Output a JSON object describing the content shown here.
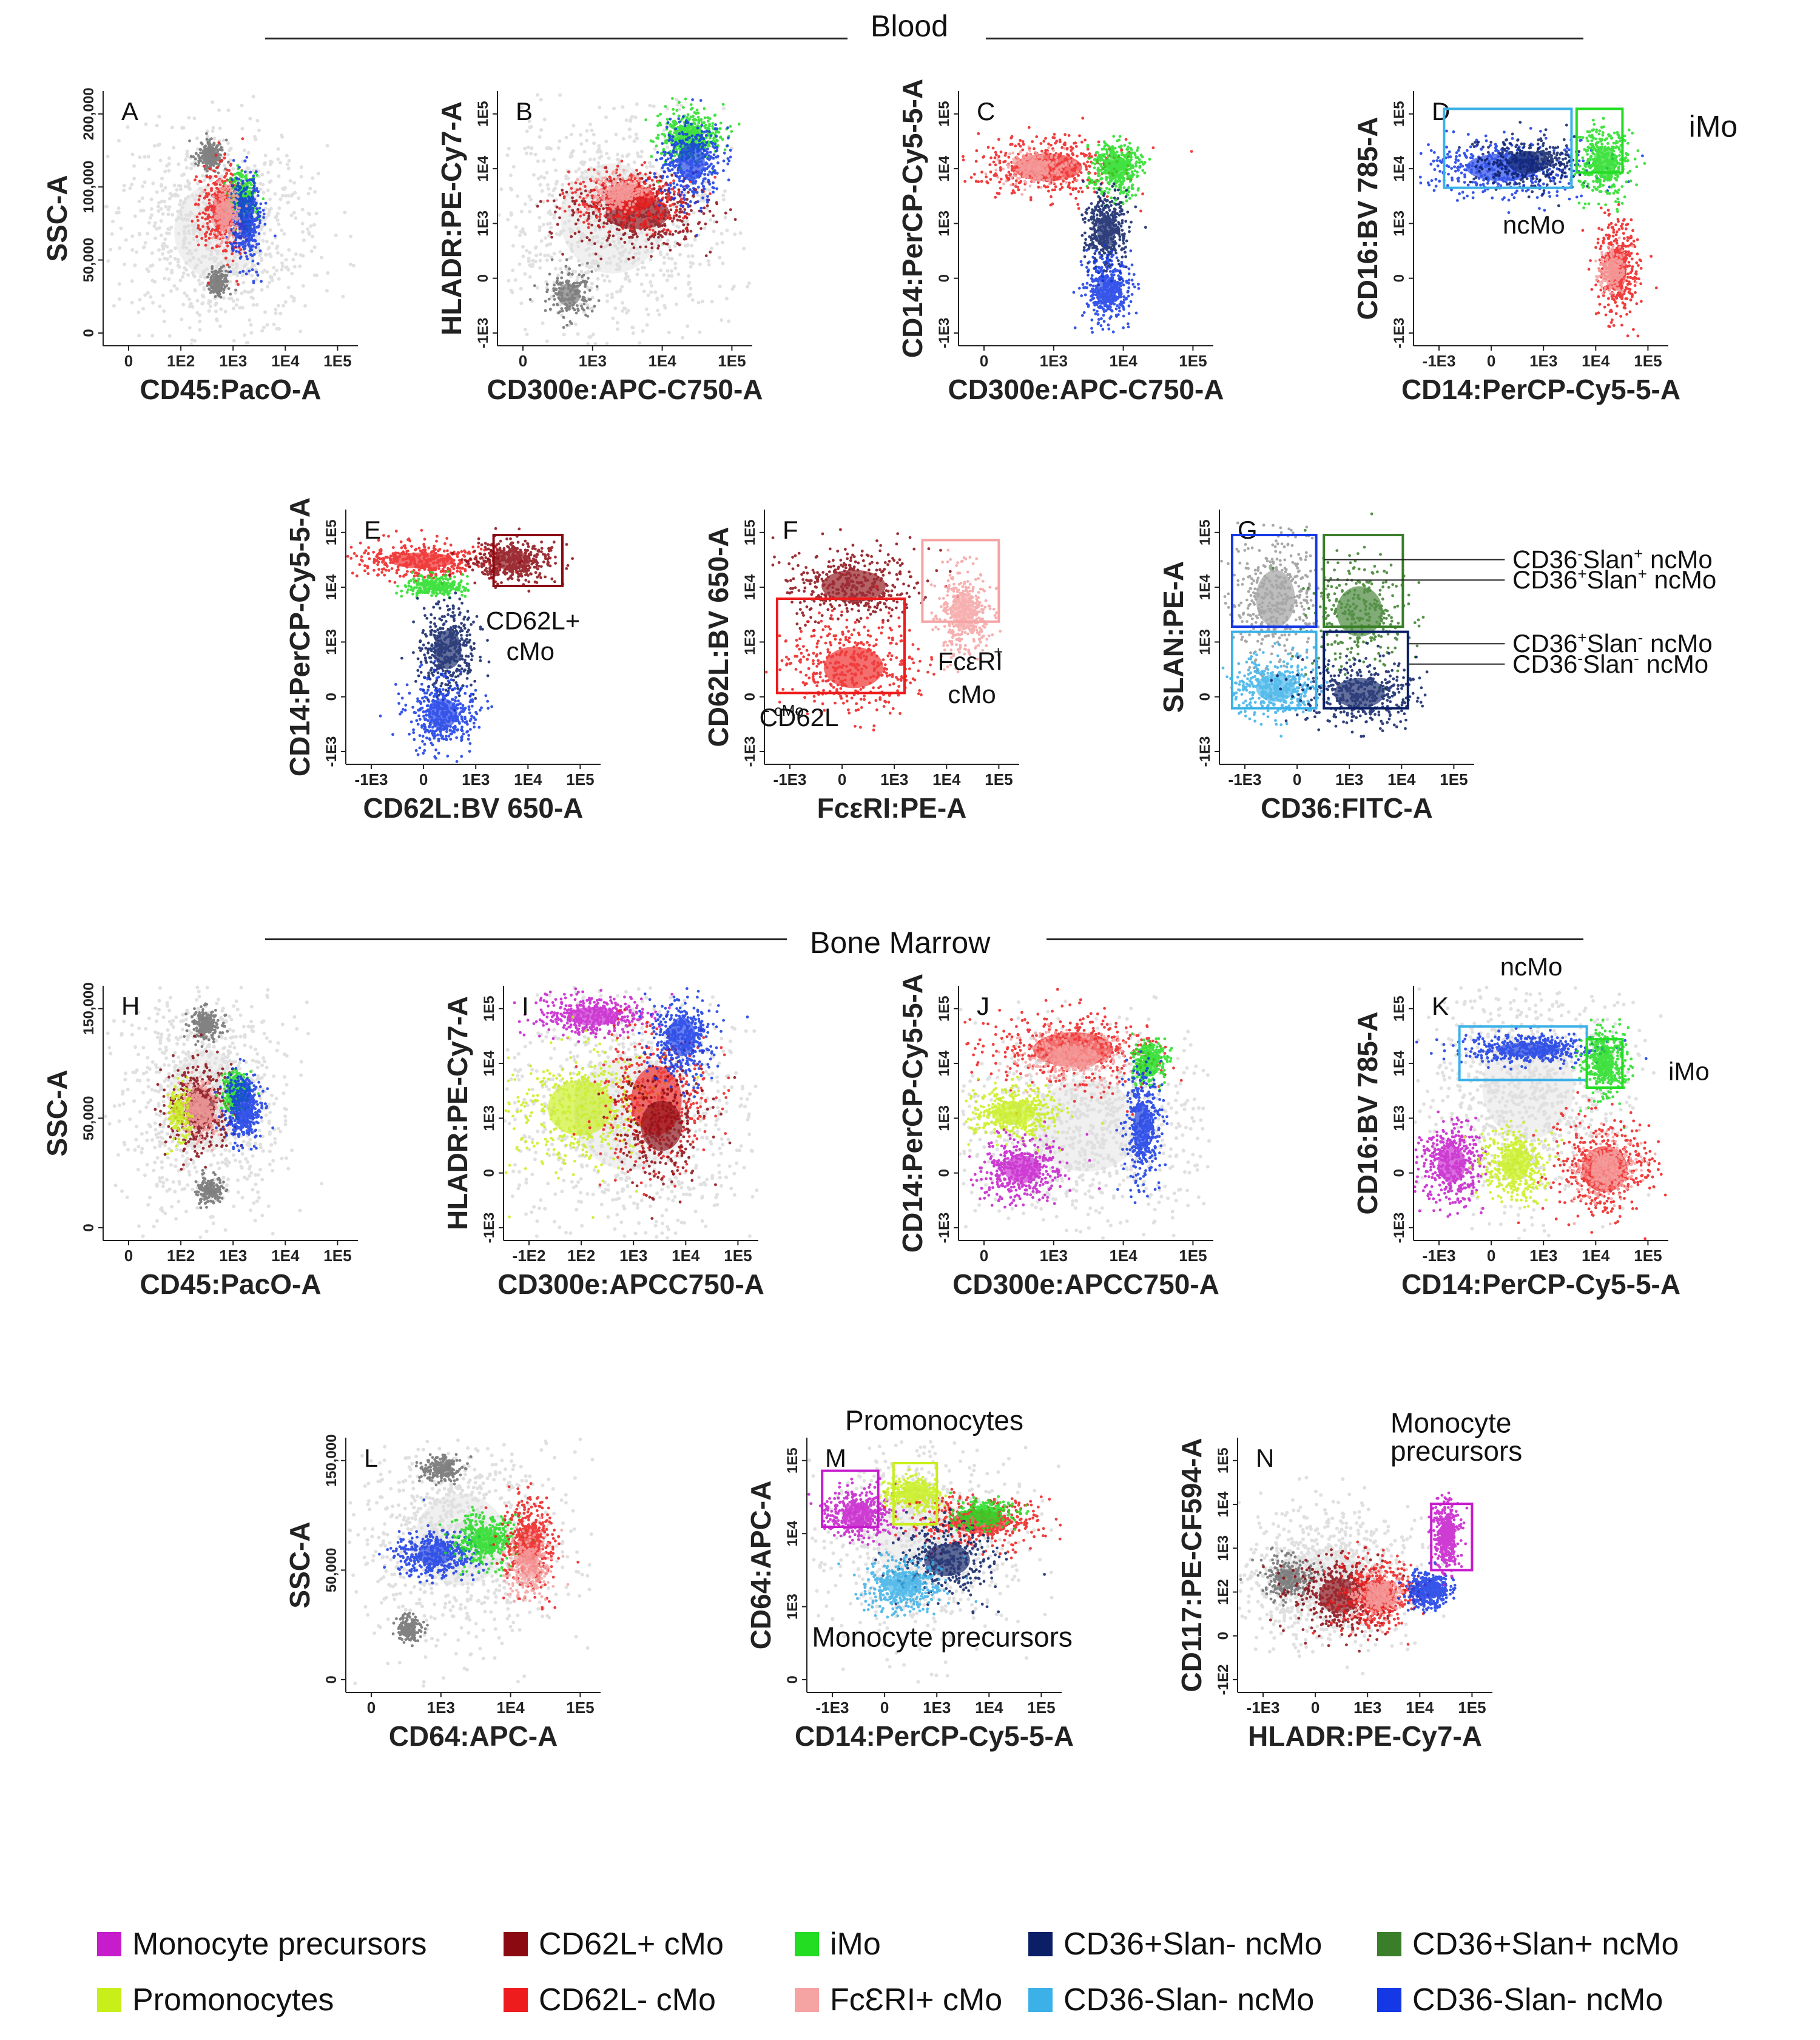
{
  "sections": {
    "blood_title": "Blood",
    "marrow_title": "Bone Marrow"
  },
  "colors": {
    "Monocyte precursors": "#c61ccc",
    "Promonocytes": "#c8ef1a",
    "CD62L+ cMo": "#8b0a12",
    "CD62L- cMo": "#ee1c1c",
    "iMo": "#22dd22",
    "FcERI+ cMo": "#f5a3a3",
    "CD36+Slan- ncMo": "#0b1f66",
    "CD36+Slan+ ncMo": "#3a7e2a",
    "CD36-Slan- ncMo (light)": "#3bb1e8",
    "CD36-Slan- ncMo": "#1438e6",
    "background": "#c8c8c8",
    "background_dark": "#6e6e6e"
  },
  "legend": [
    {
      "label": "Monocyte precursors",
      "color": "#c61ccc"
    },
    {
      "label": "CD62L+ cMo",
      "color": "#8b0a12"
    },
    {
      "label": "iMo",
      "color": "#22dd22"
    },
    {
      "label": "CD36+Slan- ncMo",
      "color": "#0b1f66"
    },
    {
      "label": "CD36+Slan+ ncMo",
      "color": "#3a7e2a"
    },
    {
      "label": "Promonocytes",
      "color": "#c8ef1a"
    },
    {
      "label": "CD62L- cMo",
      "color": "#ee1c1c"
    },
    {
      "label": "FcƐRI+ cMo",
      "color": "#f5a3a3"
    },
    {
      "label": "CD36-Slan- ncMo",
      "color": "#3bb1e8"
    },
    {
      "label": "CD36-Slan- ncMo",
      "color": "#1438e6"
    }
  ],
  "chart_data": [
    {
      "type": "scatter",
      "panel": "A",
      "xlabel": "CD45:PacO-A",
      "ylabel": "SSC-A",
      "xticks": [
        "0",
        "1E2",
        "1E3",
        "1E4",
        "1E5"
      ],
      "yticks": [
        "0",
        "50,000",
        "100,000",
        "200,000"
      ],
      "gates": [],
      "annotations": [],
      "populations": [
        {
          "name": "background",
          "color": "#c8c8c8",
          "approx": "broad cloud of leukocytes"
        },
        {
          "name": "CD62L- cMo",
          "color": "#ee1c1c",
          "approx": "CD45 ~1E3, SSC 40,000-90,000"
        },
        {
          "name": "iMo",
          "color": "#22dd22",
          "approx": "CD45 ~3E3, SSC ~70,000"
        },
        {
          "name": "CD36-Slan- ncMo",
          "color": "#1438e6",
          "approx": "CD45 ~4E3, SSC 30,000-70,000"
        }
      ]
    },
    {
      "type": "scatter",
      "panel": "B",
      "xlabel": "CD300e:APC-C750-A",
      "ylabel": "HLADR:PE-Cy7-A",
      "xticks": [
        "0",
        "1E3",
        "1E4",
        "1E5"
      ],
      "yticks": [
        "-1E3",
        "0",
        "1E3",
        "1E4",
        "1E5"
      ],
      "gates": [],
      "annotations": [],
      "populations": [
        {
          "name": "background",
          "color": "#c8c8c8",
          "approx": "broad cloud"
        },
        {
          "name": "CD62L+ cMo",
          "color": "#8b0a12",
          "approx": "CD300e 0-1E3, HLADR 1E3-1E4"
        },
        {
          "name": "CD62L- cMo",
          "color": "#ee1c1c",
          "approx": "CD300e 0-1E3, HLADR 1E3-1E4"
        },
        {
          "name": "iMo",
          "color": "#22dd22",
          "approx": "CD300e ~1E3, HLADR ~1E5"
        },
        {
          "name": "CD36-Slan- ncMo",
          "color": "#1438e6",
          "approx": "CD300e 1E3-5E3, HLADR ~1E4"
        }
      ]
    },
    {
      "type": "scatter",
      "panel": "C",
      "xlabel": "CD300e:APC-C750-A",
      "ylabel": "CD14:PerCP-Cy5-5-A",
      "xticks": [
        "0",
        "1E3",
        "1E4",
        "1E5"
      ],
      "yticks": [
        "-1E3",
        "0",
        "1E3",
        "1E4",
        "1E5"
      ],
      "gates": [],
      "annotations": [],
      "populations": [
        {
          "name": "CD62L- cMo",
          "color": "#ee1c1c",
          "approx": "CD300e 0-1E3, CD14 ~1E4"
        },
        {
          "name": "iMo",
          "color": "#22dd22",
          "approx": "CD300e ~1E3, CD14 ~5E3"
        },
        {
          "name": "CD36+Slan- ncMo",
          "color": "#0b1f66",
          "approx": "CD300e ~1E3, CD14 0-1E3"
        },
        {
          "name": "CD36-Slan- ncMo",
          "color": "#1438e6",
          "approx": "CD300e ~1E3, CD14 ~0"
        }
      ]
    },
    {
      "type": "scatter",
      "panel": "D",
      "xlabel": "CD14:PerCP-Cy5-5-A",
      "ylabel": "CD16:BV 785-A",
      "xticks": [
        "-1E3",
        "0",
        "1E3",
        "1E4",
        "1E5"
      ],
      "yticks": [
        "-1E3",
        "0",
        "1E3",
        "1E4",
        "1E5"
      ],
      "gates": [
        {
          "label": "ncMo",
          "color": "#3bb1e8"
        },
        {
          "label": "iMo",
          "color": "#22dd22"
        }
      ],
      "annotations": [
        "iMo",
        "ncMo"
      ],
      "populations": [
        {
          "name": "CD36-Slan- ncMo",
          "color": "#1438e6",
          "approx": "CD14 -1E3 to 5E3, CD16 ~1E4"
        },
        {
          "name": "iMo",
          "color": "#22dd22",
          "approx": "CD14 ~1E4, CD16 ~1E4"
        },
        {
          "name": "CD62L- cMo",
          "color": "#ee1c1c",
          "approx": "CD14 ~2E4, CD16 -1E3 to 1E3"
        }
      ]
    },
    {
      "type": "scatter",
      "panel": "E",
      "xlabel": "CD62L:BV 650-A",
      "ylabel": "CD14:PerCP-Cy5-5-A",
      "xticks": [
        "-1E3",
        "0",
        "1E3",
        "1E4",
        "1E5"
      ],
      "yticks": [
        "-1E3",
        "0",
        "1E3",
        "1E4",
        "1E5"
      ],
      "gates": [
        {
          "label": "CD62L+ cMo",
          "color": "#8b0a12"
        }
      ],
      "annotations": [
        "CD62L+",
        "cMo"
      ],
      "populations": [
        {
          "name": "CD62L- cMo",
          "color": "#ee1c1c",
          "approx": "CD62L -1E3 to 3E3, CD14 ~1E4"
        },
        {
          "name": "CD62L+ cMo",
          "color": "#8b0a12",
          "approx": "CD62L 3E3-5E4, CD14 ~1E4"
        },
        {
          "name": "CD36+Slan- ncMo",
          "color": "#0b1f66",
          "approx": "CD62L ~1E3, CD14 0-1E3"
        },
        {
          "name": "CD36-Slan- ncMo",
          "color": "#3bb1e8",
          "approx": "CD62L ~0, CD14 ~0"
        }
      ]
    },
    {
      "type": "scatter",
      "panel": "F",
      "xlabel": "FcεRI:PE-A",
      "ylabel": "CD62L:BV 650-A",
      "xticks": [
        "-1E3",
        "0",
        "1E3",
        "1E4",
        "1E5"
      ],
      "yticks": [
        "-1E3",
        "0",
        "1E3",
        "1E4",
        "1E5"
      ],
      "gates": [
        {
          "label": "CD62L- cMo",
          "color": "#ee1c1c"
        },
        {
          "label": "FcεRI+ cMo",
          "color": "#f5a3a3"
        }
      ],
      "annotations": [
        "CD62L",
        "- cMo",
        "FcεRI",
        "+",
        "cMo"
      ],
      "populations": [
        {
          "name": "CD62L+ cMo",
          "color": "#8b0a12",
          "approx": "FcERI -1E3 to 3E3, CD62L ~1E4"
        },
        {
          "name": "CD62L- cMo",
          "color": "#ee1c1c",
          "approx": "FcERI -1E3 to 3E3, CD62L 0-3E3"
        },
        {
          "name": "FcERI+ cMo",
          "color": "#f5a3a3",
          "approx": "FcERI ~1E4, CD62L 1E3-1E4"
        }
      ]
    },
    {
      "type": "scatter",
      "panel": "G",
      "xlabel": "CD36:FITC-A",
      "ylabel": "SLAN:PE-A",
      "xticks": [
        "-1E3",
        "0",
        "1E3",
        "1E4",
        "1E5"
      ],
      "yticks": [
        "-1E3",
        "0",
        "1E3",
        "1E4",
        "1E5"
      ],
      "gates": [
        {
          "label": "CD36-Slan+ ncMo",
          "color": "#1438e6"
        },
        {
          "label": "CD36+Slan+ ncMo",
          "color": "#3a7e2a"
        },
        {
          "label": "CD36+Slan- ncMo",
          "color": "#0b1f66"
        },
        {
          "label": "CD36-Slan- ncMo",
          "color": "#3bb1e8"
        }
      ],
      "annotations": [
        "CD36",
        "-",
        "Slan",
        "+",
        "ncMo",
        "CD36",
        "+",
        "Slan",
        "+",
        "ncMo",
        "CD36",
        "+",
        "Slan",
        "-",
        "ncMo",
        "CD36",
        "-",
        "Slan",
        "-",
        "ncMo"
      ],
      "populations": [
        {
          "name": "CD36-Slan+ ncMo",
          "color": "#1438e6",
          "approx": "CD36 <5E2, SLAN >5E2"
        },
        {
          "name": "CD36+Slan+ ncMo",
          "color": "#3a7e2a",
          "approx": "CD36 >5E2, SLAN >5E2"
        },
        {
          "name": "CD36-Slan- ncMo",
          "color": "#3bb1e8",
          "approx": "CD36 <5E2, SLAN <5E2"
        },
        {
          "name": "CD36+Slan- ncMo",
          "color": "#0b1f66",
          "approx": "CD36 >5E2, SLAN <5E2"
        }
      ]
    },
    {
      "type": "scatter",
      "panel": "H",
      "xlabel": "CD45:PacO-A",
      "ylabel": "SSC-A",
      "xticks": [
        "0",
        "1E2",
        "1E3",
        "1E4",
        "1E5"
      ],
      "yticks": [
        "0",
        "50,000",
        "150,000"
      ],
      "gates": [],
      "annotations": [],
      "populations": [
        {
          "name": "CD62L+ cMo",
          "color": "#8b0a12",
          "approx": "CD45 ~1E3, SSC ~60,000"
        },
        {
          "name": "FcERI+ cMo",
          "color": "#f5a3a3",
          "approx": "CD45 ~1E3, SSC ~60,000"
        },
        {
          "name": "iMo",
          "color": "#22dd22",
          "approx": "CD45 ~3E3, SSC ~70,000"
        },
        {
          "name": "CD36-Slan- ncMo",
          "color": "#1438e6",
          "approx": "CD45 ~4E3, SSC ~60,000"
        }
      ]
    },
    {
      "type": "scatter",
      "panel": "I",
      "xlabel": "CD300e:APCC750-A",
      "ylabel": "HLADR:PE-Cy7-A",
      "xticks": [
        "-1E2",
        "1E2",
        "1E3",
        "1E4",
        "1E5"
      ],
      "yticks": [
        "-1E3",
        "0",
        "1E3",
        "1E4",
        "1E5"
      ],
      "gates": [],
      "annotations": [],
      "populations": [
        {
          "name": "Monocyte precursors",
          "color": "#c61ccc",
          "approx": "CD300e ~0, HLADR ~1E5"
        },
        {
          "name": "Promonocytes",
          "color": "#c8ef1a",
          "approx": "CD300e ~0, HLADR 1E3-1E4"
        },
        {
          "name": "CD62L- cMo",
          "color": "#ee1c1c",
          "approx": "CD300e ~1E3, HLADR 1E3-1E4"
        },
        {
          "name": "CD36-Slan- ncMo",
          "color": "#1438e6",
          "approx": "CD300e ~1E3, HLADR ~5E4"
        }
      ]
    },
    {
      "type": "scatter",
      "panel": "J",
      "xlabel": "CD300e:APCC750-A",
      "ylabel": "CD14:PerCP-Cy5-5-A",
      "xticks": [
        "0",
        "1E3",
        "1E4",
        "1E5"
      ],
      "yticks": [
        "-1E3",
        "0",
        "1E3",
        "1E4",
        "1E5"
      ],
      "gates": [],
      "annotations": [],
      "populations": [
        {
          "name": "CD62L- cMo",
          "color": "#ee1c1c",
          "approx": "CD300e 0-1E3, CD14 ~1E4"
        },
        {
          "name": "Promonocytes",
          "color": "#c8ef1a",
          "approx": "CD300e ~0, CD14 ~1E3"
        },
        {
          "name": "Monocyte precursors",
          "color": "#c61ccc",
          "approx": "CD300e ~0, CD14 ~0"
        },
        {
          "name": "CD36-Slan- ncMo",
          "color": "#1438e6",
          "approx": "CD300e ~1E3, CD14 0-1E3"
        }
      ]
    },
    {
      "type": "scatter",
      "panel": "K",
      "xlabel": "CD14:PerCP-Cy5-5-A",
      "ylabel": "CD16:BV 785-A",
      "xticks": [
        "-1E3",
        "0",
        "1E3",
        "1E4",
        "1E5"
      ],
      "yticks": [
        "-1E3",
        "0",
        "1E3",
        "1E4",
        "1E5"
      ],
      "gates": [
        {
          "label": "ncMo",
          "color": "#3bb1e8"
        },
        {
          "label": "iMo",
          "color": "#22dd22"
        }
      ],
      "annotations": [
        "ncMo",
        "iMo"
      ],
      "populations": [
        {
          "name": "CD36-Slan- ncMo",
          "color": "#1438e6",
          "approx": "CD14 0-1E4, CD16 ~1E4"
        },
        {
          "name": "iMo",
          "color": "#22dd22",
          "approx": "CD14 ~2E4, CD16 ~5E3"
        },
        {
          "name": "Monocyte precursors",
          "color": "#c61ccc",
          "approx": "CD14 ~0, CD16 ~0"
        },
        {
          "name": "Promonocytes",
          "color": "#c8ef1a",
          "approx": "CD14 ~1E3, CD16 ~0"
        },
        {
          "name": "CD62L- cMo",
          "color": "#ee1c1c",
          "approx": "CD14 ~1E4, CD16 ~0"
        }
      ]
    },
    {
      "type": "scatter",
      "panel": "L",
      "xlabel": "CD64:APC-A",
      "ylabel": "SSC-A",
      "xticks": [
        "0",
        "1E3",
        "1E4",
        "1E5"
      ],
      "yticks": [
        "0",
        "50,000",
        "150,000"
      ],
      "gates": [],
      "annotations": [],
      "populations": [
        {
          "name": "CD36-Slan- ncMo",
          "color": "#1438e6",
          "approx": "CD64 ~5E2, SSC ~70,000"
        },
        {
          "name": "iMo",
          "color": "#22dd22",
          "approx": "CD64 ~3E3, SSC ~80,000"
        },
        {
          "name": "CD62L- cMo",
          "color": "#ee1c1c",
          "approx": "CD64 ~5E3, SSC ~80,000"
        },
        {
          "name": "FcERI+ cMo",
          "color": "#f5a3a3",
          "approx": "CD64 ~5E3, SSC ~60,000"
        }
      ]
    },
    {
      "type": "scatter",
      "panel": "M",
      "xlabel": "CD14:PerCP-Cy5-5-A",
      "ylabel": "CD64:APC-A",
      "xticks": [
        "-1E3",
        "0",
        "1E3",
        "1E4",
        "1E5"
      ],
      "yticks": [
        "0",
        "1E3",
        "1E4",
        "1E5"
      ],
      "gates": [
        {
          "label": "Monocyte precursors",
          "color": "#c61ccc"
        },
        {
          "label": "Promonocytes",
          "color": "#c8ef1a"
        }
      ],
      "annotations": [
        "Promonocytes",
        "Monocyte precursors"
      ],
      "populations": [
        {
          "name": "Monocyte precursors",
          "color": "#c61ccc",
          "approx": "CD14 -1E3 to 1E2, CD64 ~3E3"
        },
        {
          "name": "Promonocytes",
          "color": "#c8ef1a",
          "approx": "CD14 ~1E3, CD64 ~5E3"
        },
        {
          "name": "CD62L- cMo",
          "color": "#ee1c1c",
          "approx": "CD14 1E3-5E4, CD64 1E3-1E4"
        },
        {
          "name": "CD36-Slan- ncMo",
          "color": "#3bb1e8",
          "approx": "CD14 0-1E3, CD64 ~1E2"
        }
      ]
    },
    {
      "type": "scatter",
      "panel": "N",
      "xlabel": "HLADR:PE-Cy7-A",
      "ylabel": "CD117:PE-CF594-A",
      "xticks": [
        "-1E3",
        "0",
        "1E3",
        "1E4",
        "1E5"
      ],
      "yticks": [
        "-1E2",
        "0",
        "1E2",
        "1E3",
        "1E4",
        "1E5"
      ],
      "gates": [
        {
          "label": "Monocyte precursors",
          "color": "#c61ccc"
        }
      ],
      "annotations": [
        "Monocyte",
        "precursors"
      ],
      "populations": [
        {
          "name": "CD62L+ cMo",
          "color": "#8b0a12",
          "approx": "HLADR ~1E3, CD117 ~0"
        },
        {
          "name": "CD62L- cMo",
          "color": "#ee1c1c",
          "approx": "HLADR 1E3-1E4, CD117 ~0"
        },
        {
          "name": "CD36-Slan- ncMo",
          "color": "#1438e6",
          "approx": "HLADR ~3E4, CD117 ~1E2"
        },
        {
          "name": "Monocyte precursors",
          "color": "#c61ccc",
          "approx": "HLADR ~5E4, CD117 ~1E3"
        }
      ]
    }
  ]
}
